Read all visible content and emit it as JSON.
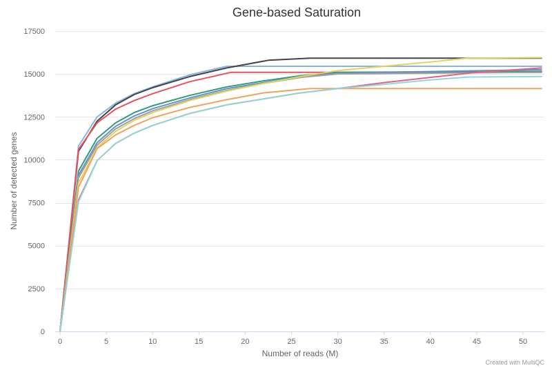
{
  "chart_data": {
    "type": "line",
    "title": "Gene-based Saturation",
    "xlabel": "Number of reads (M)",
    "ylabel": "Number of detected genes",
    "credit": "Created with MultiQC",
    "xlim": [
      0,
      52.5
    ],
    "ylim": [
      0,
      17500
    ],
    "xticks": [
      0,
      5,
      10,
      15,
      20,
      25,
      30,
      35,
      40,
      45,
      50
    ],
    "yticks": [
      0,
      2500,
      5000,
      7500,
      10000,
      12500,
      15000,
      17500
    ],
    "grid": true,
    "series": [
      {
        "color": "#8ab4e0",
        "x": [
          0,
          2,
          4,
          6,
          8,
          10,
          14,
          18,
          22,
          30,
          52
        ],
        "y": [
          0,
          10800,
          12500,
          13300,
          13850,
          14250,
          14950,
          15450,
          15450,
          15450,
          15450
        ]
      },
      {
        "color": "#434348",
        "x": [
          0,
          2,
          4,
          6,
          8,
          10,
          14,
          18,
          22.5,
          27,
          52
        ],
        "y": [
          0,
          10500,
          12250,
          13200,
          13800,
          14200,
          14850,
          15350,
          15800,
          15920,
          15920
        ]
      },
      {
        "color": "#e8525b",
        "x": [
          0,
          2,
          4,
          6,
          8,
          10,
          14,
          18.5,
          52
        ],
        "y": [
          0,
          10600,
          12150,
          12950,
          13450,
          13850,
          14550,
          15100,
          15100
        ]
      },
      {
        "color": "#2e9b7c",
        "x": [
          0,
          2,
          4,
          6,
          8,
          10,
          14,
          18,
          22,
          26,
          30,
          52
        ],
        "y": [
          0,
          9350,
          11250,
          12150,
          12750,
          13150,
          13750,
          14250,
          14600,
          14900,
          15100,
          15150
        ]
      },
      {
        "color": "#6a8fc4",
        "x": [
          0,
          2,
          4,
          6,
          8,
          10,
          14,
          18,
          22,
          26,
          30,
          52
        ],
        "y": [
          0,
          9100,
          11000,
          11950,
          12550,
          12980,
          13600,
          14150,
          14500,
          14850,
          15050,
          15250
        ]
      },
      {
        "color": "#a0a0a0",
        "x": [
          0,
          2,
          4,
          6,
          8,
          10,
          14,
          18,
          22,
          26,
          30,
          52
        ],
        "y": [
          0,
          8950,
          10850,
          11800,
          12400,
          12850,
          13500,
          14050,
          14450,
          14800,
          15000,
          15100
        ]
      },
      {
        "color": "#e4d35c",
        "x": [
          0,
          2,
          4,
          6,
          8,
          10,
          14,
          18,
          22,
          26,
          30,
          35,
          40,
          44,
          52
        ],
        "y": [
          0,
          8650,
          10700,
          11650,
          12300,
          12750,
          13450,
          14000,
          14450,
          14850,
          15200,
          15450,
          15700,
          15920,
          15950
        ]
      },
      {
        "color": "#f1a35a",
        "x": [
          0,
          2,
          4,
          6,
          8,
          10,
          14,
          18,
          22,
          27,
          52
        ],
        "y": [
          0,
          8400,
          10650,
          11450,
          12000,
          12450,
          13050,
          13500,
          13900,
          14150,
          14150
        ]
      },
      {
        "color": "#e3608a",
        "x": [
          0,
          2,
          4,
          6,
          8,
          10,
          14,
          18,
          22,
          26,
          30,
          35,
          40,
          45,
          52
        ],
        "y": [
          0,
          7650,
          9950,
          10950,
          11550,
          12000,
          12700,
          13200,
          13550,
          13900,
          14150,
          14500,
          14800,
          15100,
          15350
        ]
      },
      {
        "color": "#91d6d6",
        "x": [
          0,
          2,
          4,
          6,
          8,
          10,
          14,
          18,
          22,
          26,
          30,
          35,
          40,
          44,
          52
        ],
        "y": [
          0,
          7550,
          9950,
          10950,
          11550,
          12000,
          12700,
          13200,
          13550,
          13900,
          14150,
          14400,
          14650,
          14820,
          14850
        ]
      }
    ]
  }
}
